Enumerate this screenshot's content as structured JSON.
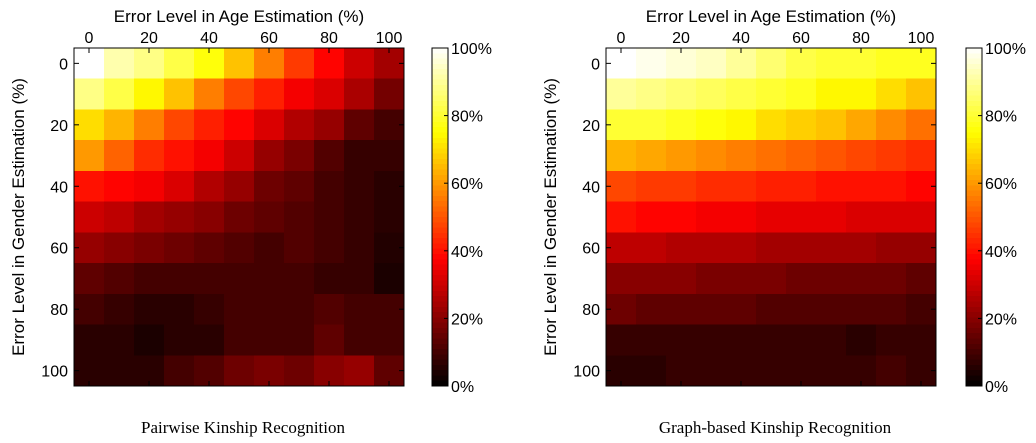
{
  "chart_data": [
    {
      "type": "heatmap",
      "caption": "Pairwise Kinship Recognition",
      "xlabel": "Error Level in Age Estimation (%)",
      "ylabel": "Error Level in Gender Estimation (%)",
      "x": [
        0,
        10,
        20,
        30,
        40,
        50,
        60,
        70,
        80,
        90,
        100
      ],
      "y": [
        0,
        10,
        20,
        30,
        40,
        50,
        60,
        70,
        80,
        90,
        100
      ],
      "xticks": [
        "0",
        "20",
        "40",
        "60",
        "80",
        "100"
      ],
      "yticks": [
        "0",
        "20",
        "40",
        "60",
        "80",
        "100"
      ],
      "colorbar": {
        "range": [
          0,
          100
        ],
        "ticks": [
          "0%",
          "20%",
          "40%",
          "60%",
          "80%",
          "100%"
        ]
      },
      "values": [
        [
          100,
          92,
          88,
          82,
          76,
          66,
          56,
          46,
          38,
          30,
          24
        ],
        [
          88,
          82,
          74,
          66,
          56,
          48,
          42,
          36,
          32,
          25,
          17
        ],
        [
          70,
          64,
          56,
          48,
          42,
          38,
          32,
          26,
          22,
          14,
          10
        ],
        [
          60,
          52,
          44,
          40,
          36,
          30,
          22,
          18,
          12,
          8,
          8
        ],
        [
          40,
          38,
          36,
          32,
          26,
          22,
          16,
          14,
          10,
          8,
          6
        ],
        [
          30,
          28,
          24,
          22,
          20,
          16,
          14,
          12,
          10,
          8,
          6
        ],
        [
          22,
          20,
          18,
          16,
          14,
          12,
          10,
          12,
          10,
          8,
          5
        ],
        [
          14,
          12,
          10,
          10,
          10,
          10,
          10,
          10,
          8,
          8,
          4
        ],
        [
          10,
          8,
          6,
          6,
          8,
          10,
          10,
          10,
          12,
          10,
          10
        ],
        [
          6,
          6,
          4,
          6,
          6,
          10,
          10,
          10,
          14,
          10,
          10
        ],
        [
          6,
          6,
          6,
          10,
          12,
          16,
          18,
          16,
          20,
          22,
          14
        ]
      ]
    },
    {
      "type": "heatmap",
      "caption": "Graph-based Kinship Recognition",
      "xlabel": "Error Level in Age Estimation (%)",
      "ylabel": "Error Level in Gender Estimation (%)",
      "x": [
        0,
        10,
        20,
        30,
        40,
        50,
        60,
        70,
        80,
        90,
        100
      ],
      "y": [
        0,
        10,
        20,
        30,
        40,
        50,
        60,
        70,
        80,
        90,
        100
      ],
      "xticks": [
        "0",
        "20",
        "40",
        "60",
        "80",
        "100"
      ],
      "yticks": [
        "0",
        "20",
        "40",
        "60",
        "80",
        "100"
      ],
      "colorbar": {
        "range": [
          0,
          100
        ],
        "ticks": [
          "0%",
          "20%",
          "40%",
          "60%",
          "80%",
          "100%"
        ]
      },
      "values": [
        [
          100,
          98,
          96,
          94,
          90,
          86,
          82,
          80,
          80,
          78,
          78
        ],
        [
          90,
          88,
          86,
          84,
          82,
          80,
          78,
          74,
          74,
          70,
          66
        ],
        [
          80,
          80,
          78,
          76,
          74,
          70,
          68,
          66,
          62,
          58,
          54
        ],
        [
          64,
          62,
          60,
          58,
          56,
          54,
          52,
          50,
          48,
          46,
          44
        ],
        [
          48,
          46,
          46,
          44,
          44,
          42,
          42,
          40,
          40,
          40,
          38
        ],
        [
          40,
          38,
          38,
          36,
          36,
          34,
          34,
          34,
          32,
          32,
          32
        ],
        [
          28,
          28,
          26,
          26,
          26,
          24,
          24,
          24,
          24,
          22,
          22
        ],
        [
          20,
          20,
          20,
          18,
          18,
          18,
          16,
          16,
          16,
          16,
          14
        ],
        [
          16,
          14,
          14,
          14,
          14,
          12,
          12,
          12,
          12,
          12,
          10
        ],
        [
          8,
          8,
          8,
          8,
          8,
          8,
          8,
          8,
          6,
          8,
          8
        ],
        [
          6,
          6,
          8,
          8,
          8,
          8,
          8,
          8,
          8,
          10,
          8
        ]
      ]
    }
  ]
}
